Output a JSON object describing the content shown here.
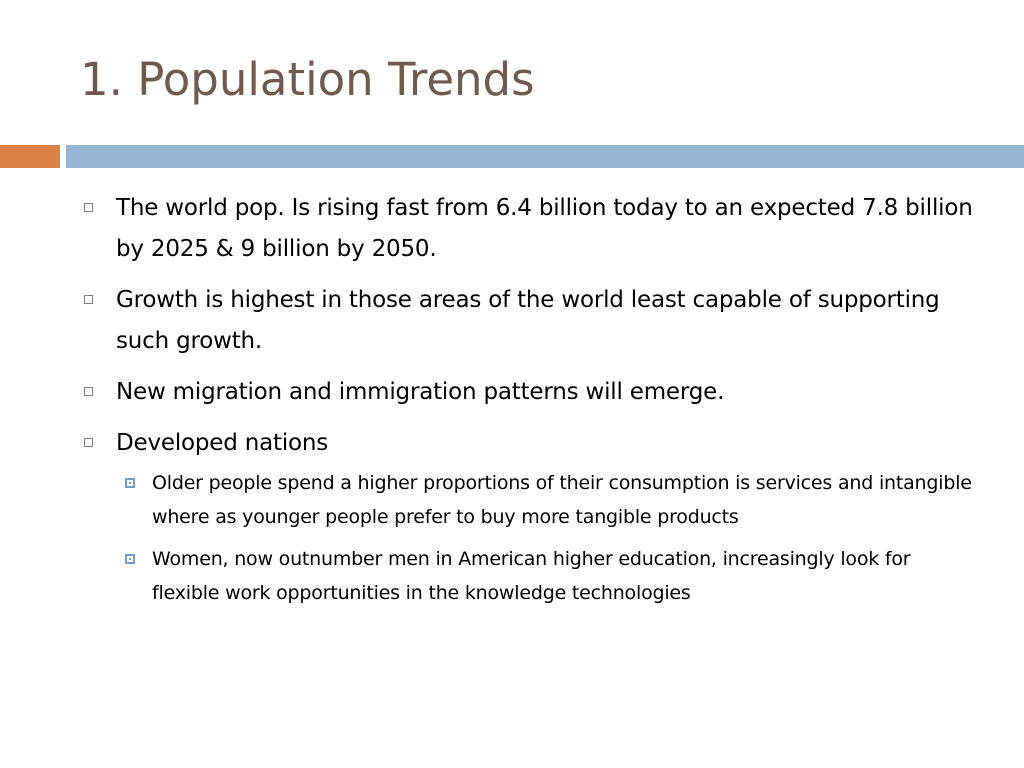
{
  "slide": {
    "title": "1. Population Trends",
    "bullets": [
      {
        "text": "The world pop. Is rising fast from 6.4 billion today to an expected 7.8 billion by 2025 & 9 billion by 2050."
      },
      {
        "text": "Growth is highest in those areas of the world least capable of supporting such growth."
      },
      {
        "text": "New migration and immigration patterns will emerge."
      },
      {
        "text": "Developed nations",
        "sub_bullets": [
          {
            "text": "Older people spend a higher proportions of their consumption is services and intangible where as younger people prefer to buy more tangible products"
          },
          {
            "text": "Women,  now outnumber men in American higher education, increasingly look for flexible work opportunities in the knowledge technologies"
          }
        ]
      }
    ]
  },
  "colors": {
    "title": "#6f5a4d",
    "accent_bar": "#dd8047",
    "main_bar": "#94b6d2",
    "sub_bullet": "#6f9fc8"
  },
  "icons": {
    "level1_bullet": "hollow-square-icon",
    "level2_bullet": "framed-square-icon"
  }
}
